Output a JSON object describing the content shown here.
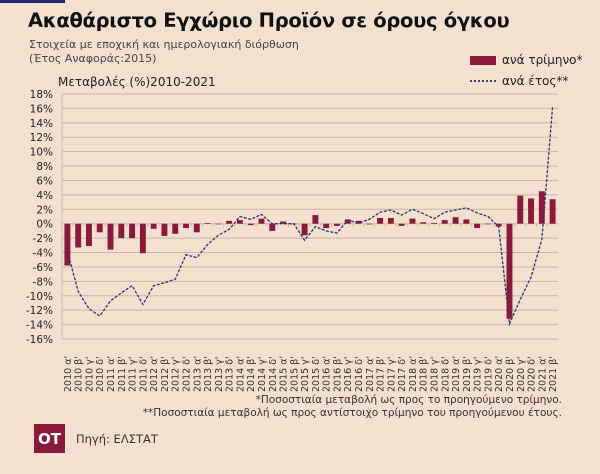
{
  "header": {
    "title": "Ακαθάριστο Εγχώριο Προϊόν σε όρους όγκου",
    "subtitle1": "Στοιχεία με εποχική και ημερολογιακή διόρθωση",
    "subtitle2": "(Έτος Αναφοράς:2015)"
  },
  "footer": {
    "note1": "*Ποσοστιαία μεταβολή ως προς το προηγούμενο τρίμηνο.",
    "note2": "**Ποσοστιαία μεταβολή ως προς αντίστοιχο τρίμηνο του προηγούμενου έτους.",
    "source": "Πηγή: ΕΛΣΤΑΤ",
    "logo": "ΟΤ"
  },
  "colors": {
    "bar": "#8b1a3a",
    "line": "#2e3370",
    "grid": "#cbb7a8"
  },
  "chart_data": {
    "type": "bar",
    "title": "Μεταβολές (%)2010-2021",
    "ylabel": "",
    "xlabel": "",
    "ylim": [
      -16,
      18
    ],
    "yticks": [
      18,
      16,
      14,
      12,
      10,
      8,
      6,
      4,
      2,
      0,
      -2,
      -4,
      -6,
      -8,
      -10,
      -12,
      -14,
      -16
    ],
    "grid": true,
    "legend_position": "top-right",
    "categories": [
      "2010 α'",
      "2010 β'",
      "2010 γ'",
      "2010 δ'",
      "2011 α'",
      "2011 β'",
      "2011 γ'",
      "2011 δ'",
      "2012 α'",
      "2012 β'",
      "2012 γ'",
      "2012 δ'",
      "2013 α'",
      "2013 β'",
      "2013 γ'",
      "2013 δ'",
      "2014 α'",
      "2014 β'",
      "2014 γ'",
      "2014 δ'",
      "2015 α'",
      "2015 β'",
      "2015 γ'",
      "2015 δ'",
      "2016 α'",
      "2016 β'",
      "2016 γ'",
      "2016 δ'",
      "2017 α'",
      "2017 β'",
      "2017 γ'",
      "2017 δ'",
      "2018 α'",
      "2018 β'",
      "2018 γ'",
      "2018 δ'",
      "2019 α'",
      "2019 β'",
      "2019 γ'",
      "2019 δ'",
      "2020 α'",
      "2020 β'",
      "2020 γ'",
      "2020 δ'",
      "2021 α'",
      "2021 β'"
    ],
    "series": [
      {
        "name": "ανά τρίμηνο*",
        "type": "bar",
        "values": [
          -5.8,
          -3.3,
          -3.1,
          -1.2,
          -3.6,
          -2.0,
          -2.0,
          -4.1,
          -0.7,
          -1.7,
          -1.4,
          -0.6,
          -1.2,
          0.1,
          0.0,
          0.4,
          0.5,
          -0.2,
          0.7,
          -1.0,
          0.3,
          0.0,
          -1.6,
          1.2,
          -0.6,
          -0.3,
          0.6,
          0.4,
          -0.1,
          0.8,
          0.8,
          -0.3,
          0.7,
          0.2,
          0.1,
          0.5,
          0.9,
          0.6,
          -0.6,
          0.0,
          -0.4,
          -13.2,
          3.9,
          3.5,
          4.5,
          3.4
        ]
      },
      {
        "name": "ανά έτος**",
        "type": "line",
        "values": [
          -3.8,
          -9.4,
          -11.8,
          -12.8,
          -10.7,
          -9.6,
          -8.6,
          -11.2,
          -8.6,
          -8.2,
          -7.7,
          -4.3,
          -4.7,
          -2.9,
          -1.6,
          -0.8,
          1.0,
          0.6,
          1.3,
          0.0,
          0.0,
          0.0,
          -2.3,
          -0.4,
          -1.0,
          -1.3,
          0.5,
          0.1,
          0.6,
          1.6,
          1.9,
          1.2,
          2.0,
          1.4,
          0.7,
          1.6,
          1.9,
          2.2,
          1.5,
          1.0,
          -0.4,
          -13.9,
          -10.5,
          -7.4,
          -2.2,
          16.3
        ]
      }
    ]
  }
}
